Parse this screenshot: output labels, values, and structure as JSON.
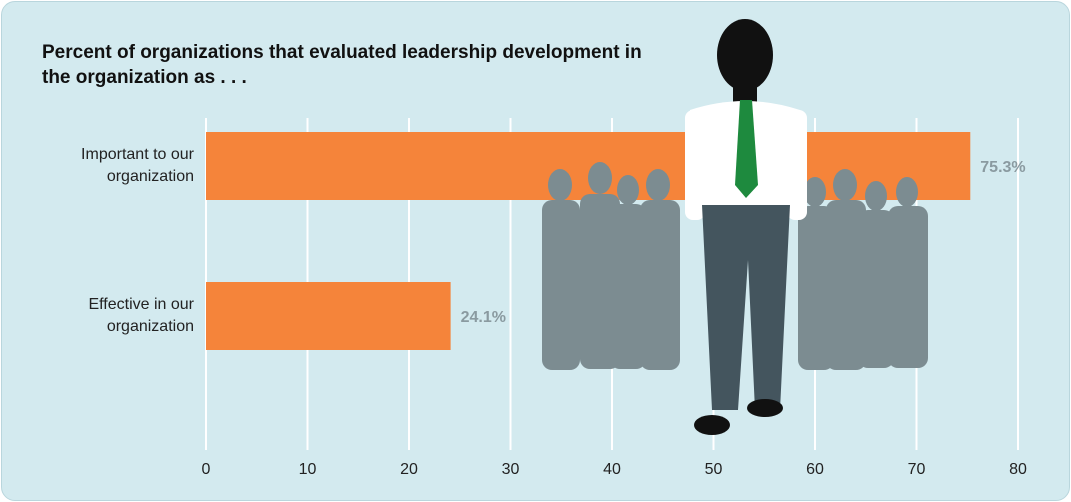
{
  "chart_data": {
    "type": "bar",
    "orientation": "horizontal",
    "title": "Percent of organizations that evaluated leadership development in the organization as . . .",
    "categories": [
      "Important to our organization",
      "Effective in our organization"
    ],
    "values": [
      75.3,
      24.1
    ],
    "value_labels": [
      "75.3%",
      "24.1%"
    ],
    "color": "#f5843a",
    "xlim": [
      0,
      80
    ],
    "xticks": [
      0,
      10,
      20,
      30,
      40,
      50,
      60,
      70,
      80
    ],
    "grid": true
  }
}
